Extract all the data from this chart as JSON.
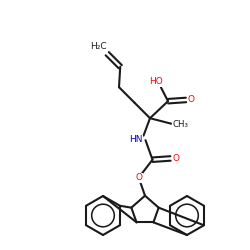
{
  "background_color": "#ffffff",
  "bond_color": "#1a1a1a",
  "oxygen_color": "#ff0000",
  "nitrogen_color": "#0000cd",
  "line_width": 1.5,
  "figsize": [
    2.5,
    2.5
  ],
  "dpi": 100,
  "xlim": [
    0,
    10
  ],
  "ylim": [
    0,
    10
  ]
}
